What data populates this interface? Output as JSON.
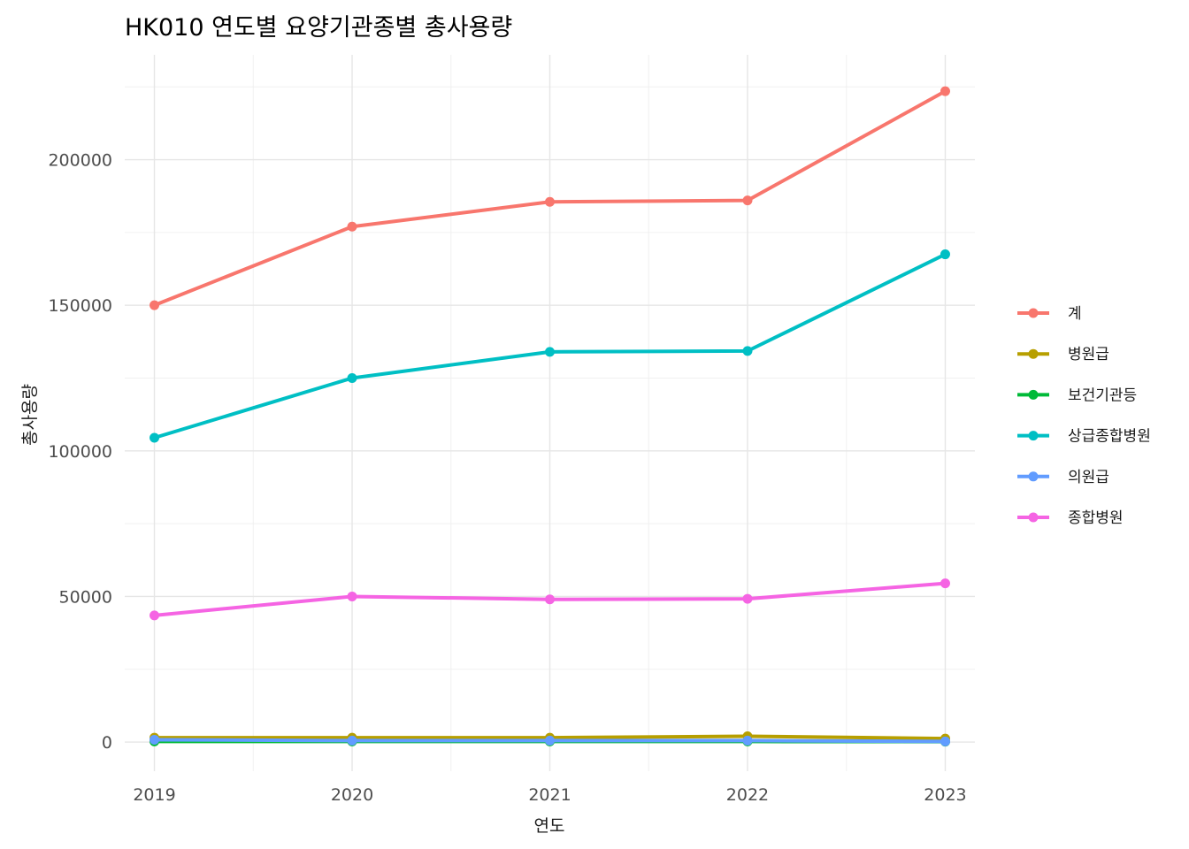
{
  "chart_data": {
    "type": "line",
    "title": "HK010 연도별 요양기관종별 총사용량",
    "xlabel": "연도",
    "ylabel": "총사용량",
    "x": [
      2019,
      2020,
      2021,
      2022,
      2023
    ],
    "xlim": [
      2018.85,
      2023.15
    ],
    "ylim": [
      -10000,
      236000
    ],
    "y_ticks": [
      0,
      50000,
      100000,
      150000,
      200000
    ],
    "grid": true,
    "legend_position": "right",
    "series": [
      {
        "name": "계",
        "color": "#F8766D",
        "values": [
          150000,
          177000,
          185500,
          186000,
          223500
        ]
      },
      {
        "name": "병원급",
        "color": "#B79F00",
        "values": [
          1500,
          1500,
          1500,
          2000,
          1200
        ]
      },
      {
        "name": "보건기관등",
        "color": "#00BA38",
        "values": [
          200,
          200,
          200,
          200,
          150
        ]
      },
      {
        "name": "상급종합병원",
        "color": "#00BFC4",
        "values": [
          104500,
          125000,
          134000,
          134300,
          167500
        ]
      },
      {
        "name": "의원급",
        "color": "#619CFF",
        "values": [
          800,
          500,
          500,
          500,
          200
        ]
      },
      {
        "name": "종합병원",
        "color": "#F564E3",
        "values": [
          43500,
          50000,
          49000,
          49200,
          54500
        ]
      }
    ]
  }
}
